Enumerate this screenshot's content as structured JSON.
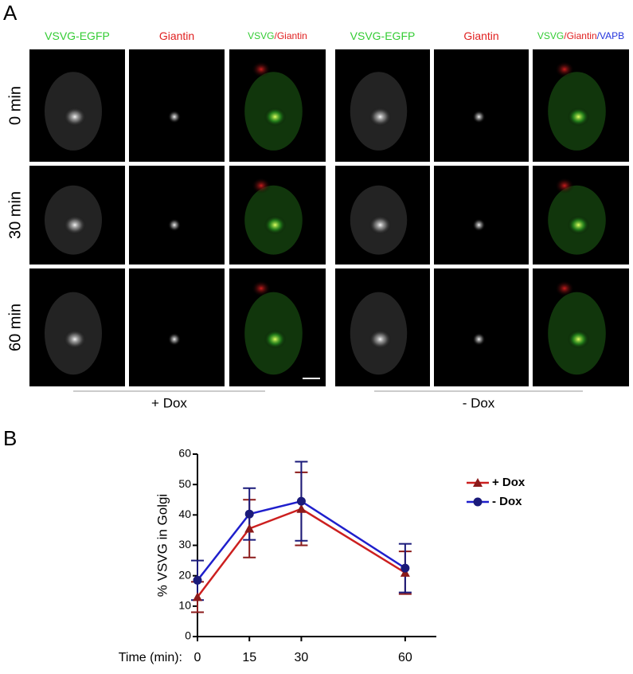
{
  "panel_a": {
    "label": "A",
    "columns": [
      [
        {
          "text": "VSVG-EGFP",
          "color": "#33cc33"
        }
      ],
      [
        {
          "text": "Giantin",
          "color": "#e02020"
        }
      ],
      [
        {
          "text": "VSVG",
          "color": "#33cc33"
        },
        {
          "text": "/Giantin",
          "color": "#e02020"
        }
      ],
      [
        {
          "text": "VSVG-EGFP",
          "color": "#33cc33"
        }
      ],
      [
        {
          "text": "Giantin",
          "color": "#e02020"
        }
      ],
      [
        {
          "text": "VSVG",
          "color": "#33cc33"
        },
        {
          "text": "/Giantin",
          "color": "#e02020"
        },
        {
          "text": "/VAPB",
          "color": "#2233dd"
        }
      ]
    ],
    "rows": [
      "0 min",
      "30 min",
      "60 min"
    ],
    "groups": [
      "+ Dox",
      "- Dox"
    ]
  },
  "chart_data": {
    "type": "line",
    "panel_label": "B",
    "y_label": "% VSVG in Golgi",
    "x_label": "Time (min):",
    "x": [
      0,
      15,
      30,
      60
    ],
    "series": [
      {
        "name": "+ Dox",
        "color": "#cc1f1f",
        "marker_color": "#8b1a1a",
        "marker": "triangle",
        "values": [
          13,
          35.5,
          42,
          21
        ],
        "errors": [
          5,
          9.5,
          12,
          7
        ]
      },
      {
        "name": "- Dox",
        "color": "#1f1fcc",
        "marker_color": "#1a1a7a",
        "marker": "circle",
        "values": [
          18.5,
          40.3,
          44.5,
          22.5
        ],
        "errors": [
          6.5,
          8.5,
          13,
          8
        ]
      }
    ],
    "xlim": [
      0,
      69
    ],
    "xticks": [
      0,
      15,
      30,
      60
    ],
    "ylim": [
      0,
      60
    ],
    "yticks": [
      0,
      10,
      20,
      30,
      40,
      50,
      60
    ]
  }
}
